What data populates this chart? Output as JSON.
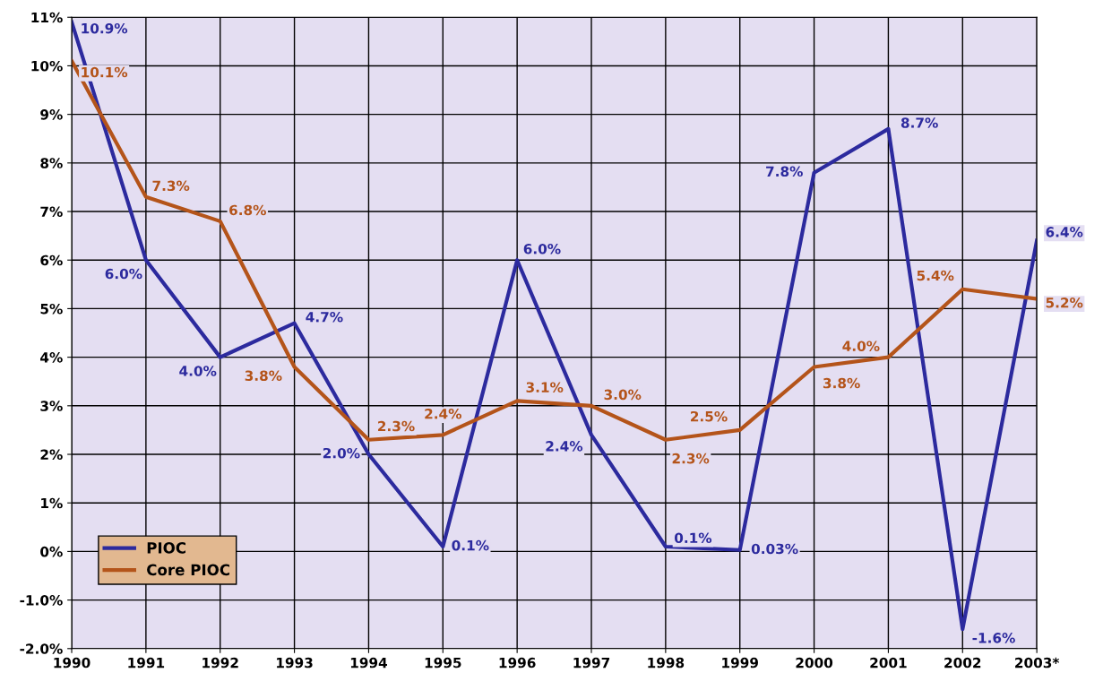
{
  "chart_data": {
    "type": "line",
    "categories": [
      "1990",
      "1991",
      "1992",
      "1993",
      "1994",
      "1995",
      "1996",
      "1997",
      "1998",
      "1999",
      "2000",
      "2001",
      "2002",
      "2003*"
    ],
    "series": [
      {
        "name": "PIOC",
        "color": "#2c2a9e",
        "values": [
          10.9,
          6.0,
          4.0,
          4.7,
          2.0,
          0.1,
          6.0,
          2.4,
          0.1,
          0.03,
          7.8,
          8.7,
          -1.6,
          6.4
        ],
        "value_labels": [
          "10.9%",
          "6.0%",
          "4.0%",
          "4.7%",
          "2.0%",
          "0.1%",
          "6.0%",
          "2.4%",
          "0.1%",
          "0.03%",
          "7.8%",
          "8.7%",
          "-1.6%",
          "6.4%"
        ]
      },
      {
        "name": "Core PIOC",
        "color": "#b4541a",
        "values": [
          10.1,
          7.3,
          6.8,
          3.8,
          2.3,
          2.4,
          3.1,
          3.0,
          2.3,
          2.5,
          3.8,
          4.0,
          5.4,
          5.2
        ],
        "value_labels": [
          "10.1%",
          "7.3%",
          "6.8%",
          "3.8%",
          "2.3%",
          "2.4%",
          "3.1%",
          "3.0%",
          "2.3%",
          "2.5%",
          "3.8%",
          "4.0%",
          "5.4%",
          "5.2%"
        ]
      }
    ],
    "ylim": [
      -2,
      11
    ],
    "yticks": [
      {
        "value": -2,
        "label": "-2.0%"
      },
      {
        "value": -1,
        "label": "-1.0%"
      },
      {
        "value": 0,
        "label": "0%"
      },
      {
        "value": 1,
        "label": "1%"
      },
      {
        "value": 2,
        "label": "2%"
      },
      {
        "value": 3,
        "label": "3%"
      },
      {
        "value": 4,
        "label": "4%"
      },
      {
        "value": 5,
        "label": "5%"
      },
      {
        "value": 6,
        "label": "6%"
      },
      {
        "value": 7,
        "label": "7%"
      },
      {
        "value": 8,
        "label": "8%"
      },
      {
        "value": 9,
        "label": "9%"
      },
      {
        "value": 10,
        "label": "10%"
      },
      {
        "value": 11,
        "label": "11%"
      }
    ],
    "grid": true,
    "legend": "bottom left",
    "marker": "none",
    "line_style": "solid"
  }
}
